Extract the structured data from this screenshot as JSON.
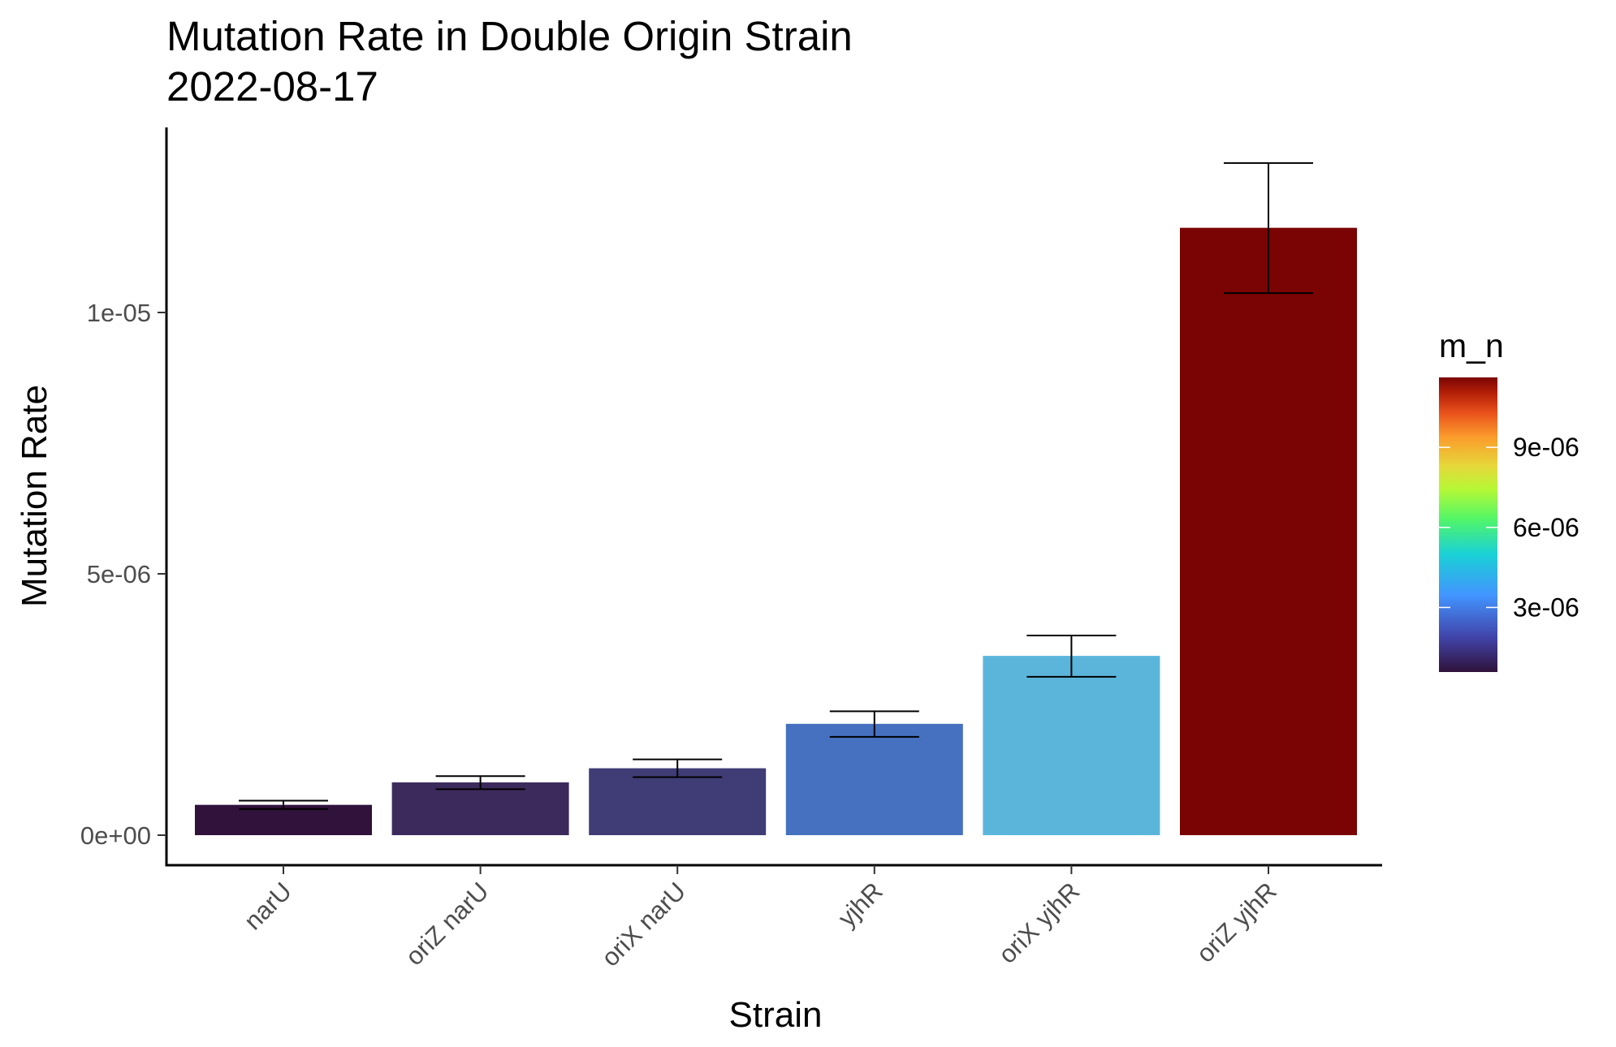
{
  "chart_data": {
    "type": "bar",
    "title": "Mutation Rate in Double Origin Strain",
    "subtitle": "2022-08-17",
    "xlabel": "Strain",
    "ylabel": "Mutation Rate",
    "categories": [
      "narU",
      "oriZ narU",
      "oriX narU",
      "yjhR",
      "oriX yjhR",
      "oriZ yjhR"
    ],
    "values": [
      5.8e-07,
      1.01e-06,
      1.28e-06,
      2.13e-06,
      3.43e-06,
      1.162e-05
    ],
    "error_low": [
      5e-07,
      8.8e-07,
      1.11e-06,
      1.88e-06,
      3.03e-06,
      1.037e-05
    ],
    "error_high": [
      6.6e-07,
      1.13e-06,
      1.45e-06,
      2.37e-06,
      3.82e-06,
      1.286e-05
    ],
    "bar_colors": [
      "#30123b",
      "#3d2a5c",
      "#403c76",
      "#4671c0",
      "#5bb5db",
      "#7a0403"
    ],
    "ylim": [
      0,
      1.286e-05
    ],
    "yticks": [
      0,
      5e-06,
      1e-05
    ],
    "ytick_labels": [
      "0e+00",
      "5e-06",
      "1e-05"
    ],
    "grid": false,
    "legend": {
      "title": "m_n",
      "type": "colorbar",
      "palette": "turbo",
      "range": [
        5.8e-07,
        1.162e-05
      ],
      "ticks": [
        3e-06,
        6e-06,
        9e-06
      ],
      "tick_labels": [
        "3e-06",
        "6e-06",
        "9e-06"
      ],
      "placement": "right"
    }
  }
}
